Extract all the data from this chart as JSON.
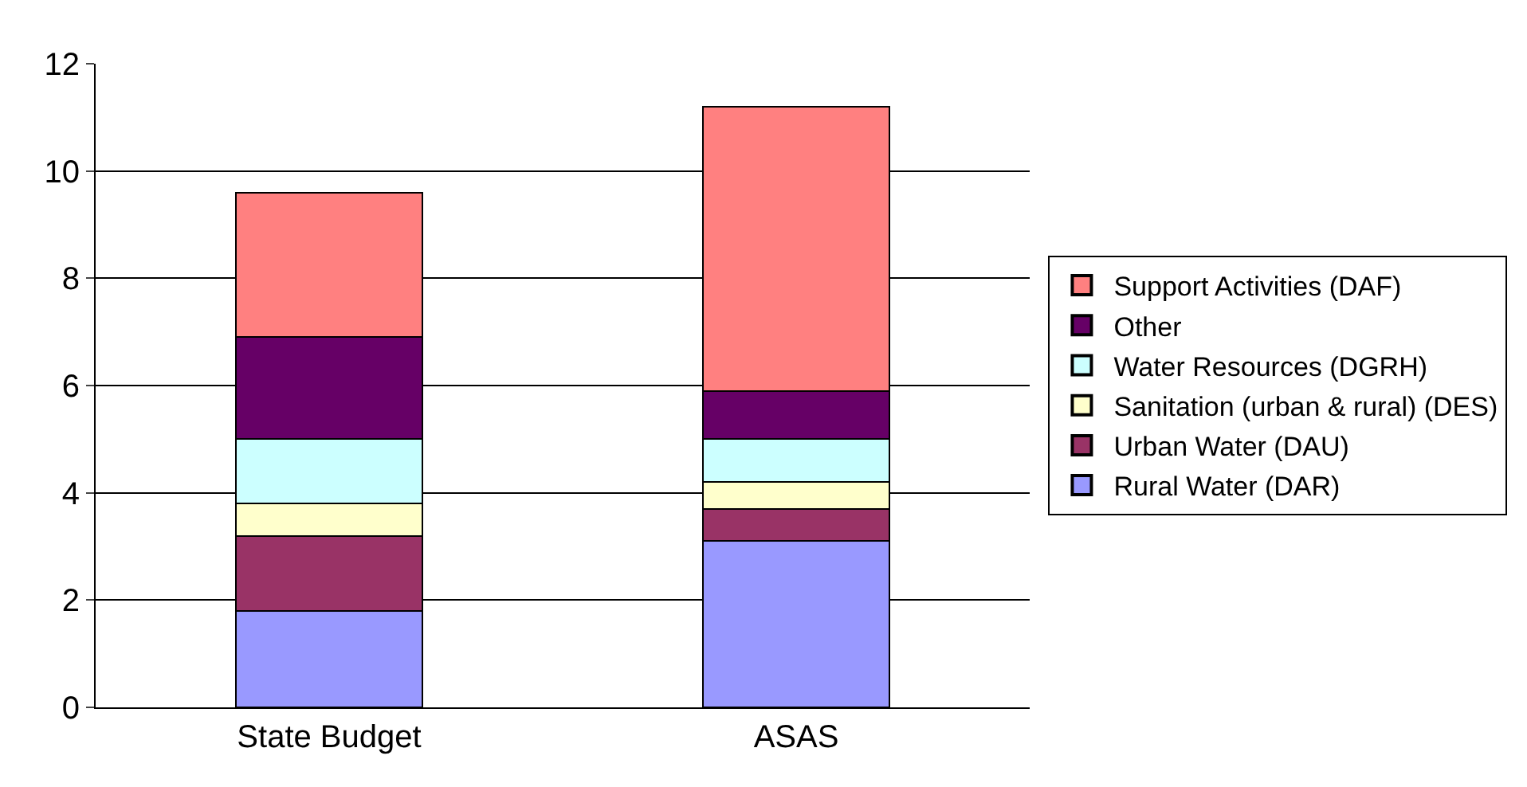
{
  "chart_data": {
    "type": "bar",
    "stacked": true,
    "categories": [
      "State Budget",
      "ASAS"
    ],
    "series": [
      {
        "name": "Rural Water (DAR)",
        "color": "#9999ff",
        "values": [
          1.8,
          3.1
        ]
      },
      {
        "name": "Urban Water (DAU)",
        "color": "#993366",
        "values": [
          1.4,
          0.6
        ]
      },
      {
        "name": "Sanitation (urban & rural) (DES)",
        "color": "#ffffcc",
        "values": [
          0.6,
          0.5
        ]
      },
      {
        "name": "Water Resources (DGRH)",
        "color": "#ccffff",
        "values": [
          1.2,
          0.8
        ]
      },
      {
        "name": "Other",
        "color": "#660066",
        "values": [
          1.9,
          0.9
        ]
      },
      {
        "name": "Support Activities (DAF)",
        "color": "#ff8080",
        "values": [
          2.7,
          5.3
        ]
      }
    ],
    "ylim": [
      0,
      12
    ],
    "yticks": [
      0,
      2,
      4,
      6,
      8,
      10,
      12
    ],
    "grid": "y",
    "legend": "right"
  }
}
